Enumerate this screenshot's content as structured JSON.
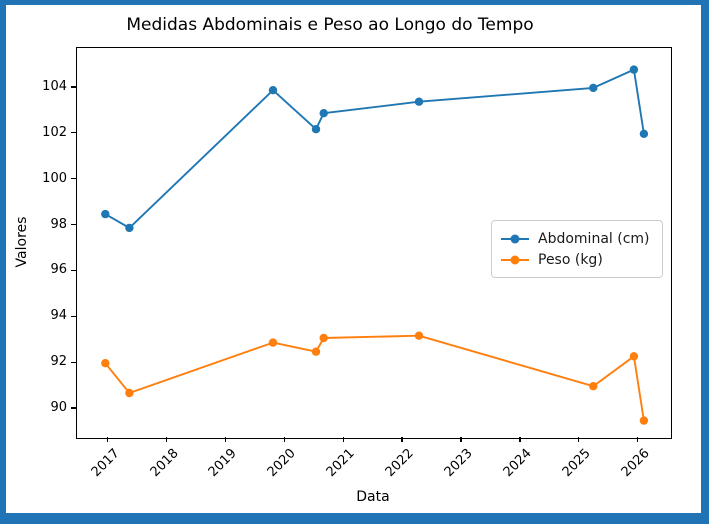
{
  "window": {
    "border_color": "#2074b6",
    "figure_background": "#ffffff"
  },
  "chart_data": {
    "type": "line",
    "title": "Medidas Abdominais e Peso ao Longo do Tempo",
    "xlabel": "Data",
    "ylabel": "Valores",
    "grid": false,
    "legend_position": "center right",
    "xlim": [
      2016.46,
      2026.55
    ],
    "ylim": [
      88.74,
      105.74
    ],
    "x_ticks": [
      2017,
      2018,
      2019,
      2020,
      2021,
      2022,
      2023,
      2024,
      2025,
      2026
    ],
    "x_tick_labels": [
      "2017",
      "2018",
      "2019",
      "2020",
      "2021",
      "2022",
      "2023",
      "2024",
      "2025",
      "2026"
    ],
    "x_tick_rotation_deg": 45,
    "y_ticks": [
      90,
      92,
      94,
      96,
      98,
      100,
      102,
      104
    ],
    "x": [
      2016.94,
      2017.35,
      2019.79,
      2020.52,
      2020.65,
      2022.27,
      2025.23,
      2025.92,
      2026.09
    ],
    "series": [
      {
        "name": "Abdominal (cm)",
        "color": "#1f77b4",
        "marker": "circle",
        "values": [
          98.5,
          97.9,
          103.9,
          102.2,
          102.9,
          103.4,
          104.0,
          104.8,
          102.0
        ]
      },
      {
        "name": "Peso (kg)",
        "color": "#ff7f0e",
        "marker": "circle",
        "values": [
          92.0,
          90.7,
          92.9,
          92.5,
          93.1,
          93.2,
          91.0,
          92.3,
          89.5
        ]
      }
    ]
  }
}
